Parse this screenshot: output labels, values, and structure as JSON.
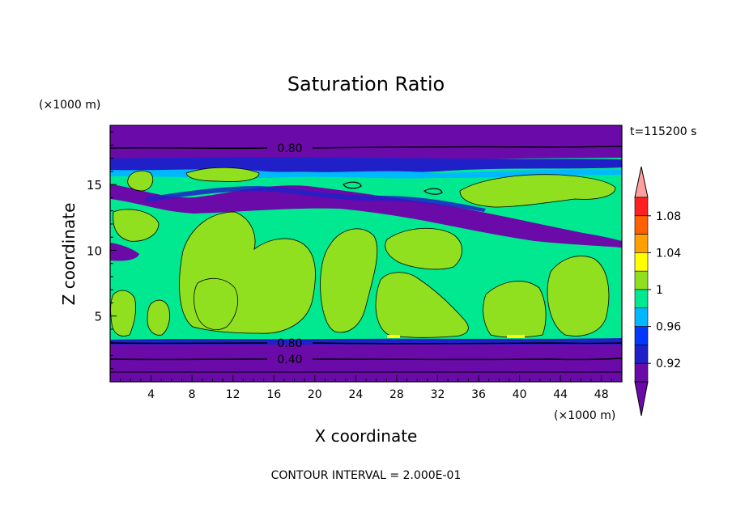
{
  "chart_data": {
    "type": "heatmap",
    "title": "Saturation Ratio",
    "xlabel": "X coordinate",
    "ylabel": "Z coordinate",
    "x_unit": "(×1000 m)",
    "y_unit": "(×1000 m)",
    "time_label": "t=115200 s",
    "footer": "CONTOUR INTERVAL = 2.000E-01",
    "xlim": [
      0,
      50
    ],
    "ylim": [
      0,
      19.5
    ],
    "x_ticks": [
      "4",
      "8",
      "12",
      "16",
      "20",
      "24",
      "28",
      "32",
      "36",
      "40",
      "44",
      "48"
    ],
    "y_ticks": [
      "5",
      "10",
      "15"
    ],
    "contour_labels": [
      "0.80",
      "0.80",
      "0.40"
    ],
    "colorbar": {
      "labels": [
        "0.92",
        "0.96",
        "1",
        "1.04",
        "1.08"
      ],
      "levels": [
        0.9,
        0.92,
        0.94,
        0.96,
        0.98,
        1.0,
        1.02,
        1.04,
        1.06,
        1.08,
        1.1
      ],
      "colors": [
        "#6a0aa8",
        "#2020c8",
        "#0038ff",
        "#00b8ff",
        "#00e890",
        "#90e020",
        "#ffff00",
        "#ffa000",
        "#ff6000",
        "#ff2020"
      ],
      "below_color": "#6a0aa8",
      "above_color": "#ffa0a0"
    },
    "regions": {
      "dry_upper": "#6a0aa8",
      "dry_lower": "#6a0aa8",
      "moist_band": "#00e890",
      "cloud_patches": "#90e020",
      "edge_blue": "#2020c8",
      "edge_cyan": "#00b8ff"
    }
  }
}
